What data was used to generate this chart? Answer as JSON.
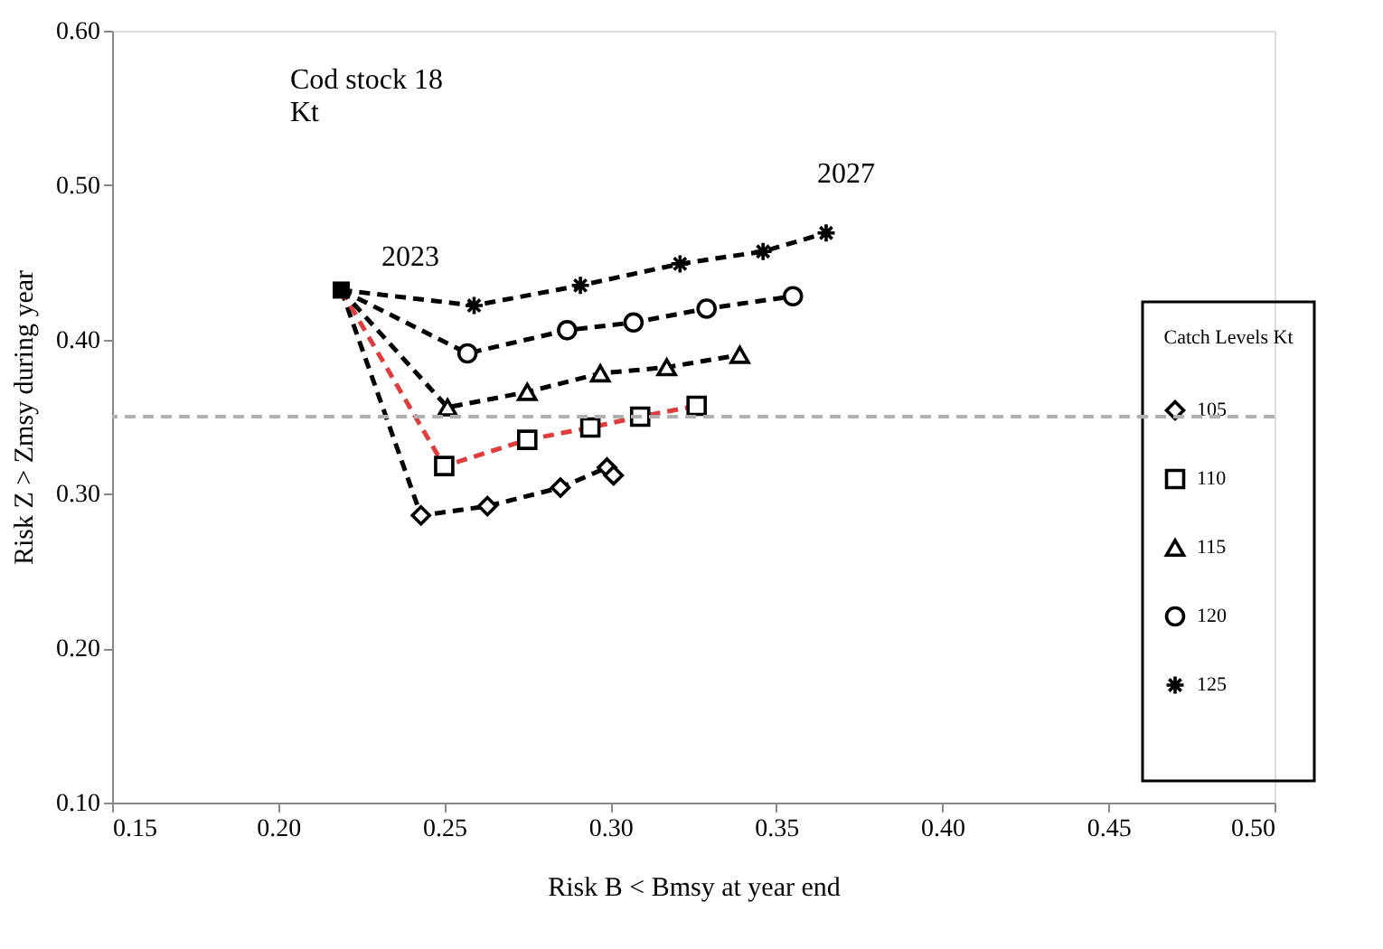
{
  "chart_data": {
    "type": "line",
    "title": "Cod stock 18\nKt",
    "xlabel": "Risk B < Bmsy at year end",
    "ylabel": "Risk Z > Zmsy during year",
    "legend_title": "Catch Levels Kt",
    "xlim": [
      0.15,
      0.5
    ],
    "xticks": [
      {
        "value": 0.15,
        "label": "0.15"
      },
      {
        "value": 0.2,
        "label": "0.20"
      },
      {
        "value": 0.25,
        "label": "0.25"
      },
      {
        "value": 0.3,
        "label": "0.30"
      },
      {
        "value": 0.35,
        "label": "0.35"
      },
      {
        "value": 0.4,
        "label": "0.40"
      },
      {
        "value": 0.45,
        "label": "0.45"
      },
      {
        "value": 0.5,
        "label": "0.50"
      }
    ],
    "ylim": [
      0.1,
      0.6
    ],
    "yticks": [
      {
        "value": 0.1,
        "label": "0.10"
      },
      {
        "value": 0.2,
        "label": "0.20"
      },
      {
        "value": 0.3,
        "label": "0.30"
      },
      {
        "value": 0.4,
        "label": "0.40"
      },
      {
        "value": 0.5,
        "label": "0.50"
      },
      {
        "value": 0.6,
        "label": "0.60"
      }
    ],
    "grid": false,
    "legend": "right",
    "line_style": "dashed",
    "series": [
      {
        "name": "105",
        "color": "#000000",
        "marker": "diamond",
        "x": [
          0.219,
          0.243,
          0.263,
          0.285,
          0.299,
          0.301
        ],
        "values": [
          0.432,
          0.286,
          0.292,
          0.304,
          0.317,
          0.312
        ]
      },
      {
        "name": "110",
        "color": "#e03c3c",
        "marker": "square",
        "x": [
          0.219,
          0.25,
          0.275,
          0.294,
          0.309,
          0.326
        ],
        "values": [
          0.432,
          0.318,
          0.335,
          0.343,
          0.35,
          0.357
        ]
      },
      {
        "name": "115",
        "color": "#000000",
        "marker": "triangle",
        "x": [
          0.219,
          0.251,
          0.275,
          0.297,
          0.317,
          0.339
        ],
        "values": [
          0.432,
          0.356,
          0.366,
          0.378,
          0.382,
          0.39
        ]
      },
      {
        "name": "120",
        "color": "#000000",
        "marker": "circle",
        "x": [
          0.219,
          0.257,
          0.287,
          0.307,
          0.329,
          0.355
        ],
        "values": [
          0.432,
          0.391,
          0.406,
          0.411,
          0.42,
          0.428
        ]
      },
      {
        "name": "125",
        "color": "#000000",
        "marker": "cross",
        "x": [
          0.219,
          0.259,
          0.291,
          0.321,
          0.346,
          0.365
        ],
        "values": [
          0.432,
          0.422,
          0.435,
          0.449,
          0.457,
          0.469
        ]
      },
      {
        "type": "scatter",
        "color": "#000000",
        "marker": "square",
        "x": [
          0.219
        ],
        "values": [
          0.432
        ]
      }
    ],
    "ref_lines": [
      {
        "axis": "y",
        "value": 0.35,
        "color": "#b0b0b0",
        "line_style": "dashed"
      }
    ],
    "annotations": [
      "2023",
      "2027"
    ]
  }
}
